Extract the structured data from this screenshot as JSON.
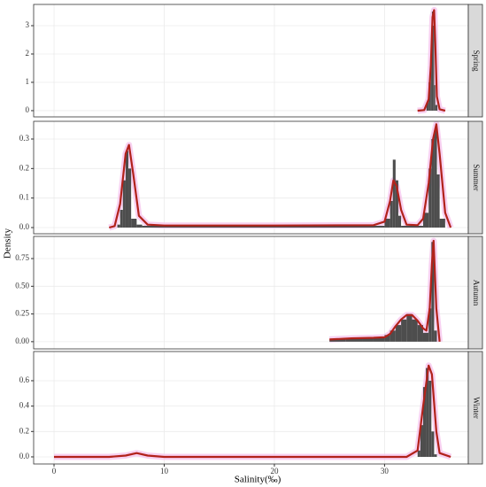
{
  "chart_data": {
    "type": "histogram",
    "xlabel": "Salinity(‰)",
    "ylabel": "Density",
    "xlim": [
      -1.85,
      37.6
    ],
    "xticks": [
      0,
      10,
      20,
      30
    ],
    "grid": true,
    "bar_color": "#4d4d4d",
    "line_color": "#b2221b",
    "halo_color": "#f6c6ee",
    "panels": [
      {
        "strip": "Spring",
        "ylim": [
          -0.22,
          3.75
        ],
        "yticks": [
          0,
          1,
          2,
          3
        ],
        "bins": [
          33.8,
          34.0,
          34.2,
          34.3,
          34.4,
          34.5,
          34.6,
          34.8
        ],
        "counts": [
          0.3,
          1.0,
          2.0,
          3.5,
          3.0,
          0.9,
          0.2
        ],
        "density": {
          "x": [
            33,
            33.6,
            34.0,
            34.2,
            34.35,
            34.5,
            34.6,
            34.75,
            35,
            35.5
          ],
          "y": [
            0,
            0.02,
            0.4,
            1.6,
            3.3,
            3.55,
            2.4,
            0.5,
            0.05,
            0
          ]
        }
      },
      {
        "strip": "Summer",
        "ylim": [
          -0.021,
          0.36
        ],
        "yticks": [
          {
            "value": 0,
            "label": "0.0"
          },
          {
            "value": 0.1,
            "label": "0.1"
          },
          {
            "value": 0.2,
            "label": "0.2"
          },
          {
            "value": 0.3,
            "label": "0.3"
          }
        ],
        "bins": [
          5.75,
          6,
          6.25,
          6.5,
          6.75,
          7,
          7.5,
          8,
          30,
          30.5,
          30.75,
          31,
          31.25,
          31.5,
          33.5,
          34,
          34.25,
          34.5,
          34.75,
          35,
          35.5
        ],
        "counts": [
          0.01,
          0.06,
          0.16,
          0.26,
          0.2,
          0.03,
          0.01,
          0.006,
          0.03,
          0.09,
          0.23,
          0.16,
          0.04,
          0.006,
          0.05,
          0.2,
          0.3,
          0.33,
          0.18,
          0.03
        ],
        "density": {
          "x": [
            5,
            5.5,
            6,
            6.5,
            6.8,
            7.2,
            7.7,
            8.5,
            10,
            20,
            29,
            30,
            30.5,
            30.8,
            31.1,
            31.5,
            32,
            33,
            33.5,
            34,
            34.4,
            34.7,
            35,
            35.5,
            36
          ],
          "y": [
            0,
            0.005,
            0.08,
            0.25,
            0.28,
            0.18,
            0.04,
            0.01,
            0.007,
            0.007,
            0.008,
            0.02,
            0.09,
            0.16,
            0.14,
            0.06,
            0.01,
            0.008,
            0.03,
            0.15,
            0.3,
            0.35,
            0.25,
            0.05,
            0
          ]
        }
      },
      {
        "strip": "Autumn",
        "ylim": [
          -0.065,
          0.95
        ],
        "yticks": [
          {
            "value": 0,
            "label": "0.00"
          },
          {
            "value": 0.25,
            "label": "0.25"
          },
          {
            "value": 0.5,
            "label": "0.50"
          },
          0.75
        ],
        "bins": [
          25,
          26.5,
          28,
          29,
          30,
          30.5,
          31,
          31.5,
          32,
          32.5,
          33,
          33.5,
          34,
          34.25,
          34.5,
          34.75
        ],
        "counts": [
          0.02,
          0.03,
          0.03,
          0.04,
          0.06,
          0.1,
          0.15,
          0.2,
          0.25,
          0.2,
          0.15,
          0.08,
          0.3,
          0.9,
          0.1
        ],
        "density": {
          "x": [
            25,
            27,
            29,
            30,
            30.5,
            31,
            31.5,
            32,
            32.5,
            33,
            33.5,
            33.8,
            34.1,
            34.3,
            34.45,
            34.7,
            35
          ],
          "y": [
            0.02,
            0.03,
            0.035,
            0.04,
            0.07,
            0.14,
            0.2,
            0.24,
            0.24,
            0.19,
            0.12,
            0.1,
            0.3,
            0.7,
            0.91,
            0.3,
            0
          ]
        }
      },
      {
        "strip": "Winter",
        "ylim": [
          -0.056,
          0.83
        ],
        "yticks": [
          {
            "value": 0,
            "label": "0.0"
          },
          {
            "value": 0.2,
            "label": "0.2"
          },
          {
            "value": 0.4,
            "label": "0.4"
          },
          {
            "value": 0.6,
            "label": "0.6"
          }
        ],
        "bins": [
          33,
          33.25,
          33.5,
          33.75,
          34,
          34.25,
          34.5,
          34.75
        ],
        "counts": [
          0.05,
          0.25,
          0.55,
          0.7,
          0.6,
          0.2,
          0.02
        ],
        "density": {
          "x": [
            0,
            5,
            6.5,
            7.5,
            8.5,
            10,
            20,
            32,
            33,
            33.5,
            34,
            34.3,
            34.7,
            35,
            36
          ],
          "y": [
            0,
            0,
            0.01,
            0.03,
            0.01,
            0,
            0,
            0,
            0.05,
            0.4,
            0.72,
            0.65,
            0.2,
            0.03,
            0
          ]
        }
      }
    ]
  }
}
